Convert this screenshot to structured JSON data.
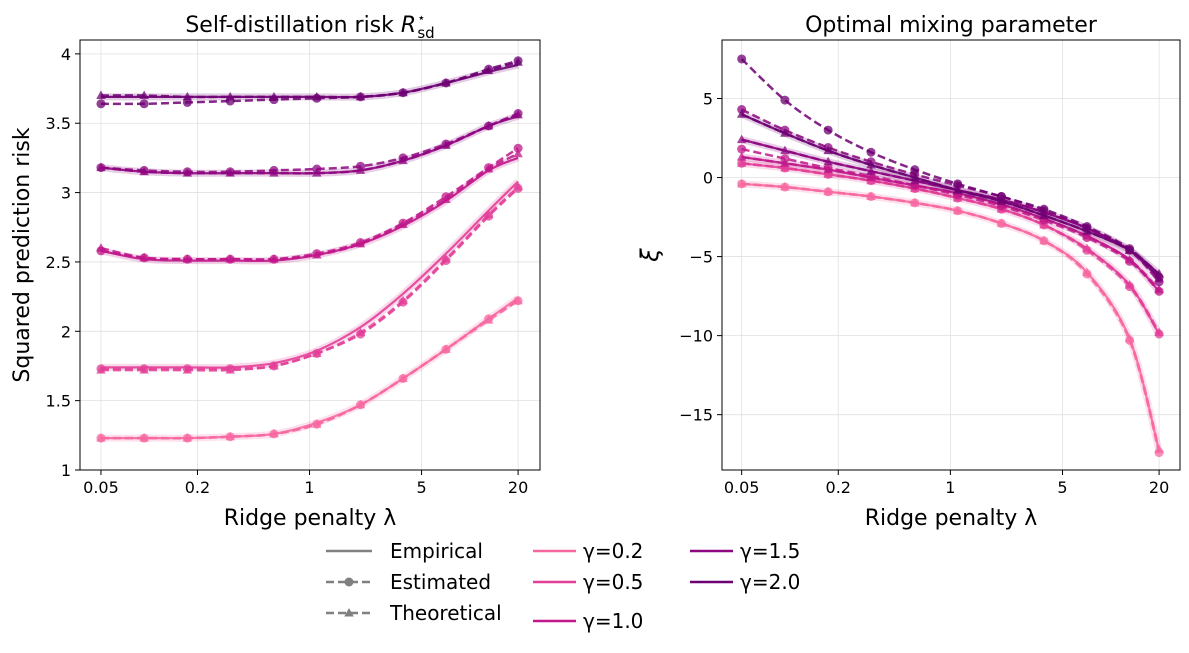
{
  "legend": {
    "styles": [
      {
        "label": "Empirical",
        "kind": "solid"
      },
      {
        "label": "Estimated",
        "kind": "dashed-circle"
      },
      {
        "label": "Theoretical",
        "kind": "dashed-triangle"
      }
    ],
    "gammas": [
      "γ=0.2",
      "γ=0.5",
      "γ=1.0",
      "γ=1.5",
      "γ=2.0"
    ],
    "placement": "bottom-center"
  },
  "colors": {
    "γ=0.2": "#f768a1",
    "γ=0.5": "#e33f98",
    "γ=1.0": "#c0178a",
    "γ=1.5": "#8e0680",
    "γ=2.0": "#6e0073",
    "legend_style": "#808080",
    "grid": "#e0e0e0"
  },
  "chart_data": [
    {
      "type": "line",
      "title": "Self-distillation risk",
      "title_math": "R",
      "title_sup": "⋆",
      "title_sub": "sd",
      "xlabel": "Ridge penalty λ",
      "ylabel": "Squared prediction risk",
      "xscale": "log",
      "xlim": [
        0.037,
        27.4
      ],
      "ylim": [
        1,
        4.1
      ],
      "xticks": [
        0.05,
        0.2,
        1,
        5,
        20
      ],
      "xtick_labels": [
        "0.05",
        "0.2",
        "1",
        "5",
        "20"
      ],
      "yticks": [
        1,
        1.5,
        2,
        2.5,
        3,
        3.5,
        4
      ],
      "ytick_labels": [
        "1",
        "1.5",
        "2",
        "2.5",
        "3",
        "3.5",
        "4"
      ],
      "grid": true,
      "x": [
        0.05,
        0.093,
        0.173,
        0.32,
        0.6,
        1.11,
        2.08,
        3.83,
        7.1,
        13.1,
        20
      ],
      "series": [
        {
          "name": "γ=0.2",
          "empirical": [
            1.23,
            1.23,
            1.23,
            1.24,
            1.26,
            1.34,
            1.47,
            1.66,
            1.87,
            2.09,
            2.24
          ],
          "estimated": [
            1.23,
            1.23,
            1.23,
            1.24,
            1.26,
            1.33,
            1.47,
            1.66,
            1.87,
            2.09,
            2.22
          ],
          "theoretical": [
            1.23,
            1.23,
            1.23,
            1.24,
            1.26,
            1.33,
            1.47,
            1.66,
            1.87,
            2.08,
            2.22
          ]
        },
        {
          "name": "γ=0.5",
          "empirical": [
            1.74,
            1.74,
            1.74,
            1.74,
            1.77,
            1.86,
            2.03,
            2.27,
            2.56,
            2.87,
            3.08
          ],
          "estimated": [
            1.73,
            1.73,
            1.73,
            1.73,
            1.75,
            1.84,
            1.98,
            2.21,
            2.51,
            2.83,
            3.03
          ],
          "theoretical": [
            1.72,
            1.72,
            1.72,
            1.72,
            1.75,
            1.84,
            1.99,
            2.22,
            2.52,
            2.84,
            3.04
          ]
        },
        {
          "name": "γ=1.0",
          "empirical": [
            2.58,
            2.52,
            2.51,
            2.51,
            2.51,
            2.55,
            2.63,
            2.76,
            2.94,
            3.16,
            3.25
          ],
          "estimated": [
            2.58,
            2.53,
            2.52,
            2.52,
            2.52,
            2.56,
            2.64,
            2.78,
            2.97,
            3.18,
            3.32
          ],
          "theoretical": [
            2.6,
            2.53,
            2.52,
            2.52,
            2.52,
            2.55,
            2.63,
            2.77,
            2.95,
            3.17,
            3.28
          ]
        },
        {
          "name": "γ=1.5",
          "empirical": [
            3.18,
            3.15,
            3.14,
            3.14,
            3.14,
            3.14,
            3.16,
            3.23,
            3.34,
            3.48,
            3.55
          ],
          "estimated": [
            3.18,
            3.16,
            3.15,
            3.15,
            3.16,
            3.17,
            3.19,
            3.25,
            3.35,
            3.48,
            3.57
          ],
          "theoretical": [
            3.18,
            3.15,
            3.14,
            3.14,
            3.14,
            3.14,
            3.16,
            3.23,
            3.34,
            3.48,
            3.56
          ]
        },
        {
          "name": "γ=2.0",
          "empirical": [
            3.69,
            3.69,
            3.69,
            3.69,
            3.69,
            3.69,
            3.69,
            3.72,
            3.79,
            3.87,
            3.92
          ],
          "estimated": [
            3.64,
            3.64,
            3.65,
            3.66,
            3.67,
            3.68,
            3.69,
            3.72,
            3.79,
            3.89,
            3.95
          ],
          "theoretical": [
            3.7,
            3.7,
            3.69,
            3.69,
            3.69,
            3.69,
            3.69,
            3.72,
            3.79,
            3.88,
            3.94
          ]
        }
      ]
    },
    {
      "type": "line",
      "title": "Optimal mixing parameter",
      "xlabel": "Ridge penalty λ",
      "ylabel": "ξ",
      "xscale": "log",
      "xlim": [
        0.0377,
        27
      ],
      "ylim": [
        -18.5,
        8.7
      ],
      "xticks": [
        0.05,
        0.2,
        1,
        5,
        20
      ],
      "xtick_labels": [
        "0.05",
        "0.2",
        "1",
        "5",
        "20"
      ],
      "yticks": [
        -15,
        -10,
        -5,
        0,
        5
      ],
      "ytick_labels": [
        "−15",
        "−10",
        "−5",
        "0",
        "5"
      ],
      "grid": true,
      "x": [
        0.05,
        0.093,
        0.173,
        0.32,
        0.6,
        1.11,
        2.08,
        3.83,
        7.1,
        13.1,
        20
      ],
      "series": [
        {
          "name": "γ=0.2",
          "empirical": [
            -0.4,
            -0.6,
            -0.9,
            -1.2,
            -1.6,
            -2.1,
            -2.9,
            -4.0,
            -6.0,
            -10.2,
            -17.3
          ],
          "estimated": [
            -0.4,
            -0.6,
            -0.9,
            -1.2,
            -1.6,
            -2.1,
            -2.9,
            -4.0,
            -6.1,
            -10.3,
            -17.4
          ],
          "theoretical": [
            -0.4,
            -0.6,
            -0.9,
            -1.2,
            -1.6,
            -2.1,
            -2.9,
            -4.0,
            -6.0,
            -10.2,
            -17.2
          ]
        },
        {
          "name": "γ=0.5",
          "empirical": [
            0.9,
            0.6,
            0.2,
            -0.2,
            -0.7,
            -1.3,
            -2.0,
            -3.0,
            -4.5,
            -6.8,
            -9.9
          ],
          "estimated": [
            0.9,
            0.6,
            0.2,
            -0.2,
            -0.7,
            -1.3,
            -2.0,
            -3.0,
            -4.6,
            -6.9,
            -9.9
          ],
          "theoretical": [
            0.9,
            0.6,
            0.2,
            -0.2,
            -0.7,
            -1.3,
            -2.0,
            -3.0,
            -4.5,
            -6.8,
            -9.8
          ]
        },
        {
          "name": "γ=1.0",
          "empirical": [
            1.3,
            0.9,
            0.5,
            0.0,
            -0.5,
            -1.0,
            -1.7,
            -2.6,
            -3.7,
            -5.2,
            -7.2
          ],
          "estimated": [
            1.8,
            1.2,
            0.6,
            0.1,
            -0.5,
            -1.1,
            -1.8,
            -2.7,
            -3.8,
            -5.3,
            -7.2
          ],
          "theoretical": [
            1.3,
            0.9,
            0.5,
            0.0,
            -0.5,
            -1.0,
            -1.7,
            -2.6,
            -3.7,
            -5.2,
            -7.1
          ]
        },
        {
          "name": "γ=1.5",
          "empirical": [
            2.4,
            1.7,
            1.0,
            0.4,
            -0.2,
            -0.8,
            -1.4,
            -2.2,
            -3.2,
            -4.6,
            -6.4
          ],
          "estimated": [
            4.3,
            3.0,
            1.9,
            1.0,
            0.2,
            -0.5,
            -1.2,
            -2.1,
            -3.2,
            -4.6,
            -6.6
          ],
          "theoretical": [
            2.4,
            1.7,
            1.0,
            0.4,
            -0.2,
            -0.8,
            -1.4,
            -2.2,
            -3.2,
            -4.6,
            -6.4
          ]
        },
        {
          "name": "γ=2.0",
          "empirical": [
            4.0,
            2.8,
            1.7,
            0.8,
            0.0,
            -0.8,
            -1.5,
            -2.4,
            -3.4,
            -4.6,
            -6.1
          ],
          "estimated": [
            7.5,
            4.9,
            3.0,
            1.6,
            0.5,
            -0.4,
            -1.2,
            -2.0,
            -3.1,
            -4.5,
            -6.3
          ],
          "theoretical": [
            4.0,
            2.8,
            1.7,
            0.8,
            0.0,
            -0.8,
            -1.5,
            -2.4,
            -3.4,
            -4.6,
            -6.1
          ]
        }
      ]
    }
  ]
}
